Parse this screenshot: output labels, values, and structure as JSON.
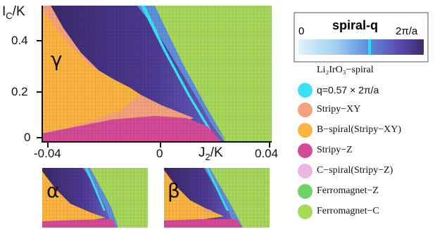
{
  "chart_data": {
    "type": "heatmap",
    "main": {
      "xlabel": "J₂/K",
      "ylabel": "I_C/K",
      "xlim": [
        -0.045,
        0.04
      ],
      "ylim": [
        -0.01,
        0.48
      ],
      "x_ticks": [
        "-0.04",
        "0",
        "0.04"
      ],
      "y_ticks": [
        "0",
        "0.2",
        "0.4"
      ],
      "region_label": "γ"
    },
    "insets": [
      {
        "label": "α"
      },
      {
        "label": "β"
      }
    ],
    "phases": [
      {
        "name": "Stripy−XY",
        "color": "#f4a27e"
      },
      {
        "name": "B−spiral(Stripy−XY)",
        "color": "#fbb440"
      },
      {
        "name": "Stripy−Z",
        "color": "#d44a96"
      },
      {
        "name": "C−spiral(Stripy−Z)",
        "color": "#e8b8e0"
      },
      {
        "name": "Ferromagnet−Z",
        "color": "#6ed26a"
      },
      {
        "name": "Ferromagnet−C",
        "color": "#a8d85a"
      }
    ],
    "colorbar": {
      "title": "spiral-q",
      "min_label": "0",
      "max_label": "2π/a",
      "colors": [
        "#e2f2fc",
        "#9fd0f0",
        "#5e8fdc",
        "#5b4bb0",
        "#3f2a6e"
      ],
      "marker_color": "#1fe0f0",
      "marker_position": 0.57
    },
    "reference": {
      "title": "Li₂IrO₃−spiral",
      "value_label": "q=0.57 × 2π/a",
      "color": "#37e3f3"
    }
  }
}
